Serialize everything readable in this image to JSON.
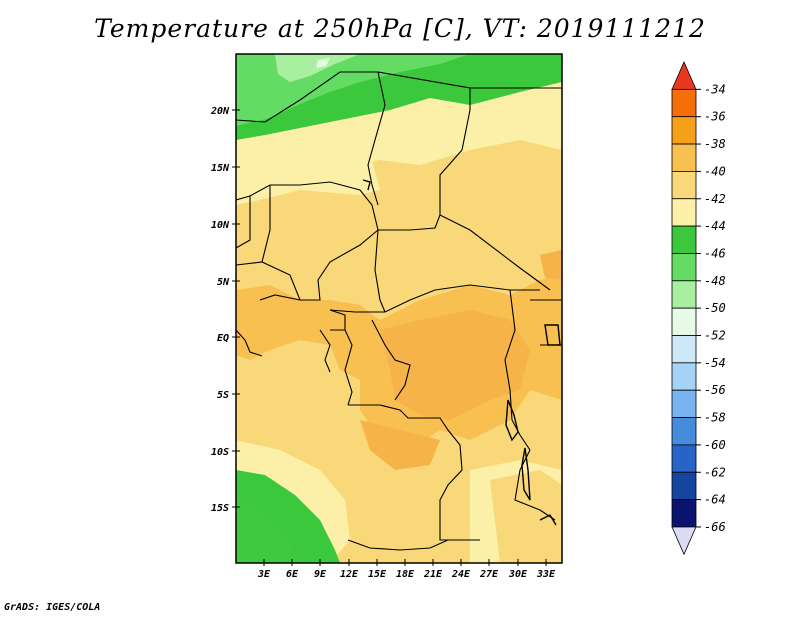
{
  "title": "Temperature at 250hPa [C], VT: 2019111212",
  "credit": "GrADS: IGES/COLA",
  "map": {
    "lat_labels": [
      "20N",
      "15N",
      "10N",
      "5N",
      "EQ",
      "5S",
      "10S",
      "15S"
    ],
    "lon_labels": [
      "3E",
      "6E",
      "9E",
      "12E",
      "15E",
      "18E",
      "21E",
      "24E",
      "27E",
      "30E",
      "33E"
    ]
  },
  "colorbar": {
    "labels": [
      "-34",
      "-36",
      "-38",
      "-40",
      "-42",
      "-44",
      "-46",
      "-48",
      "-50",
      "-52",
      "-54",
      "-56",
      "-58",
      "-60",
      "-62",
      "-64",
      "-66"
    ],
    "colors": [
      "#e8381f",
      "#f56e0a",
      "#f5a018",
      "#f7c050",
      "#f8d878",
      "#fcf0a8",
      "#3cc83c",
      "#64dc64",
      "#a8f0a0",
      "#e6fae6",
      "#cde6f8",
      "#a6d2f5",
      "#78b4f0",
      "#468cdc",
      "#2864c8",
      "#1446a0",
      "#0a146e",
      "#dcdcf5"
    ],
    "units": "C"
  }
}
